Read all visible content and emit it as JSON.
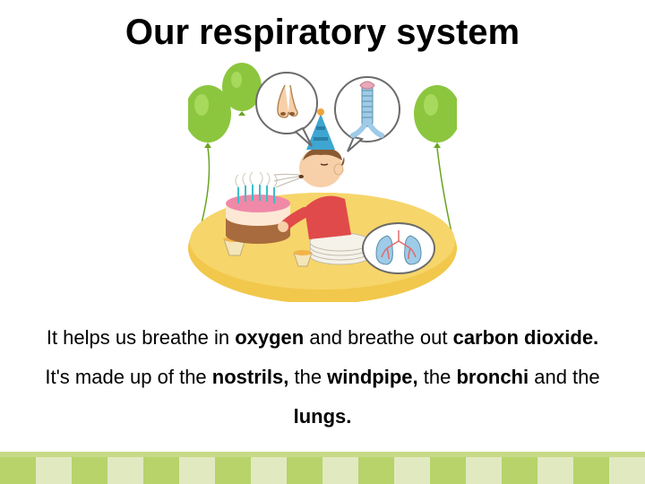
{
  "title": "Our respiratory system",
  "body": {
    "t1": "It helps us breathe in ",
    "b1": "oxygen",
    "t2": " and breathe out ",
    "b2": "carbon dioxide.",
    "t3": " It's made up of the ",
    "b3": "nostrils,",
    "t4": " the ",
    "b4": "windpipe,",
    "t5": " the ",
    "b5": "bronchi",
    "t6": " and the ",
    "b6": "lungs."
  },
  "colors": {
    "balloon_green": "#8cc63f",
    "balloon_green_dark": "#6aa321",
    "tablecloth": "#f1c84b",
    "tablecloth_shadow": "#d9ae2e",
    "plate": "#f5f2ea",
    "plate_edge": "#bfb9a8",
    "cake_top": "#f089a8",
    "cake_mid": "#fce8d4",
    "cake_base": "#a86b3d",
    "hat_blue": "#3ea6d1",
    "hat_stripe": "#2b80a6",
    "shirt": "#e04a4a",
    "skin": "#f7cfa8",
    "hair": "#8a5a33",
    "bubble_fill": "#ffffff",
    "bubble_stroke": "#6b6b6b",
    "lung_blue": "#9ecbe8",
    "lung_red": "#e06a6a",
    "trachea": "#8fbfd6",
    "candle": "#3abfc9",
    "flame": "#f1a33a",
    "cup": "#f4e6b8",
    "juice": "#f3b24a"
  },
  "stripes": {
    "pattern": [
      "#b7d36a",
      "#e1e9c1",
      "#b7d36a",
      "#e1e9c1",
      "#b7d36a",
      "#e1e9c1",
      "#b7d36a",
      "#e1e9c1",
      "#b7d36a",
      "#e1e9c1",
      "#b7d36a",
      "#e1e9c1",
      "#b7d36a",
      "#e1e9c1",
      "#b7d36a",
      "#e1e9c1",
      "#b7d36a",
      "#e1e9c1"
    ],
    "top_band": "#c6da86",
    "height": 36
  }
}
